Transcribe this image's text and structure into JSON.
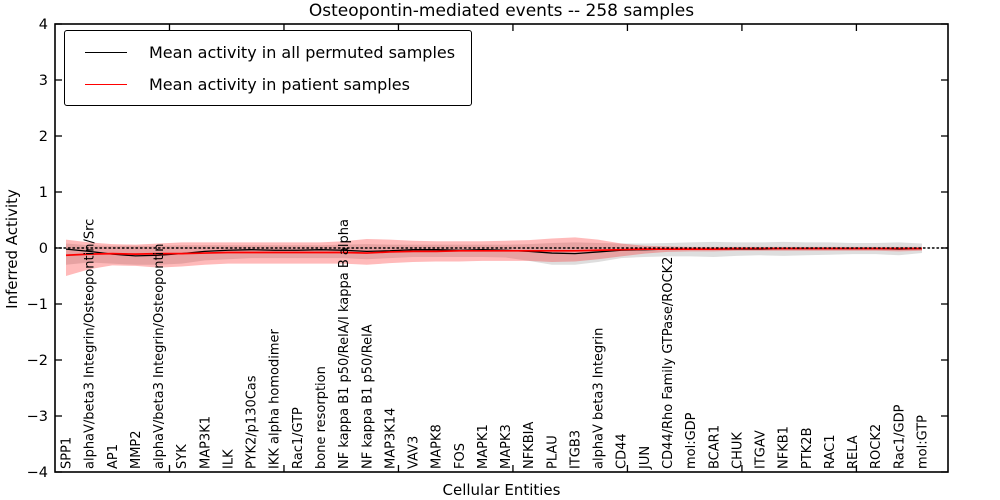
{
  "chart_data": {
    "type": "line",
    "title": "Osteopontin-mediated events -- 258 samples",
    "xlabel": "Cellular Entities",
    "ylabel": "Inferred Activity",
    "ylim": [
      -4,
      4
    ],
    "ytick_values": [
      4,
      3,
      2,
      1,
      0,
      -1,
      -2,
      -3,
      -4
    ],
    "ytick_labels": [
      "4",
      "3",
      "2",
      "1",
      "0",
      "−1",
      "−2",
      "−3",
      "−4"
    ],
    "x_axis_range": [
      0,
      39
    ],
    "xtick_axis_positions": [
      5,
      10,
      15,
      20,
      25,
      30,
      35
    ],
    "grid": false,
    "legend_position": "upper-left",
    "zero_line": {
      "style": "dotted",
      "color": "#000000",
      "y": 0
    },
    "categories": [
      "SPP1",
      "alphaV/beta3 Integrin/Osteopontin/Src",
      "AP1",
      "MMP2",
      "alphaV/beta3 Integrin/Osteopontin",
      "SYK",
      "MAP3K1",
      "ILK",
      "PYK2/p130Cas",
      "IKK alpha homodimer",
      "Rac1/GTP",
      "bone resorption",
      "NF kappa B1 p50/RelA/I kappa B alpha",
      "NF kappa B1 p50/RelA",
      "MAP3K14",
      "VAV3",
      "MAPK8",
      "FOS",
      "MAPK1",
      "MAPK3",
      "NFKBIA",
      "PLAU",
      "ITGB3",
      "alphaV beta3 Integrin",
      "CD44",
      "JUN",
      "CD44/Rho Family GTPase/ROCK2",
      "mol:GDP",
      "BCAR1",
      "CHUK",
      "ITGAV",
      "NFKB1",
      "PTK2B",
      "RAC1",
      "RELA",
      "ROCK2",
      "Rac1/GDP",
      "mol:GTP"
    ],
    "series": [
      {
        "name": "Mean activity in all permuted samples",
        "color": "#000000",
        "values": [
          -0.02,
          -0.06,
          -0.11,
          -0.14,
          -0.13,
          -0.1,
          -0.06,
          -0.04,
          -0.03,
          -0.04,
          -0.04,
          -0.03,
          -0.04,
          -0.06,
          -0.05,
          -0.03,
          -0.03,
          -0.04,
          -0.03,
          -0.04,
          -0.06,
          -0.09,
          -0.1,
          -0.07,
          -0.04,
          -0.03,
          -0.02,
          -0.02,
          -0.02,
          -0.02,
          -0.02,
          -0.01,
          -0.01,
          -0.01,
          -0.01,
          -0.01,
          -0.02,
          -0.01
        ]
      },
      {
        "name": "Mean activity in patient samples",
        "color": "#ff0000",
        "values": [
          -0.13,
          -0.11,
          -0.1,
          -0.11,
          -0.1,
          -0.1,
          -0.09,
          -0.08,
          -0.08,
          -0.08,
          -0.08,
          -0.08,
          -0.08,
          -0.09,
          -0.07,
          -0.06,
          -0.06,
          -0.05,
          -0.05,
          -0.05,
          -0.05,
          -0.05,
          -0.05,
          -0.04,
          -0.03,
          -0.02,
          -0.02,
          -0.02,
          -0.02,
          -0.01,
          -0.01,
          -0.01,
          -0.01,
          -0.01,
          -0.01,
          -0.01,
          -0.01,
          -0.01
        ]
      }
    ],
    "bands": [
      {
        "name": "permuted-samples-range",
        "fill": "rgba(0,0,0,0.13)",
        "upper": [
          0.08,
          0.05,
          0.04,
          0.04,
          0.04,
          0.05,
          0.05,
          0.05,
          0.05,
          0.05,
          0.05,
          0.05,
          0.06,
          0.07,
          0.06,
          0.06,
          0.06,
          0.06,
          0.06,
          0.06,
          0.07,
          0.09,
          0.1,
          0.09,
          0.08,
          0.08,
          0.09,
          0.1,
          0.11,
          0.1,
          0.1,
          0.11,
          0.1,
          0.1,
          0.09,
          0.09,
          0.1,
          0.08
        ],
        "lower": [
          -0.3,
          -0.26,
          -0.28,
          -0.3,
          -0.3,
          -0.28,
          -0.22,
          -0.2,
          -0.18,
          -0.18,
          -0.18,
          -0.18,
          -0.18,
          -0.2,
          -0.18,
          -0.16,
          -0.16,
          -0.16,
          -0.16,
          -0.17,
          -0.23,
          -0.3,
          -0.3,
          -0.25,
          -0.18,
          -0.16,
          -0.15,
          -0.15,
          -0.16,
          -0.14,
          -0.13,
          -0.14,
          -0.13,
          -0.12,
          -0.11,
          -0.11,
          -0.13,
          -0.09
        ]
      },
      {
        "name": "patient-samples-range",
        "fill": "rgba(255,0,0,0.27)",
        "upper": [
          0.15,
          0.1,
          0.07,
          0.06,
          0.08,
          0.1,
          0.1,
          0.1,
          0.1,
          0.1,
          0.1,
          0.1,
          0.12,
          0.16,
          0.15,
          0.13,
          0.12,
          0.12,
          0.12,
          0.13,
          0.14,
          0.17,
          0.19,
          0.15,
          0.08,
          0.04,
          0.03,
          0.02,
          0.02,
          0.02,
          0.02,
          0.02,
          0.02,
          0.02,
          0.02,
          0.02,
          0.02,
          0.02
        ],
        "lower": [
          -0.5,
          -0.38,
          -0.31,
          -0.32,
          -0.35,
          -0.33,
          -0.3,
          -0.28,
          -0.28,
          -0.28,
          -0.28,
          -0.28,
          -0.28,
          -0.3,
          -0.27,
          -0.25,
          -0.24,
          -0.24,
          -0.23,
          -0.23,
          -0.23,
          -0.25,
          -0.24,
          -0.2,
          -0.15,
          -0.1,
          -0.07,
          -0.06,
          -0.06,
          -0.05,
          -0.05,
          -0.05,
          -0.05,
          -0.05,
          -0.05,
          -0.05,
          -0.06,
          -0.05
        ]
      }
    ]
  }
}
